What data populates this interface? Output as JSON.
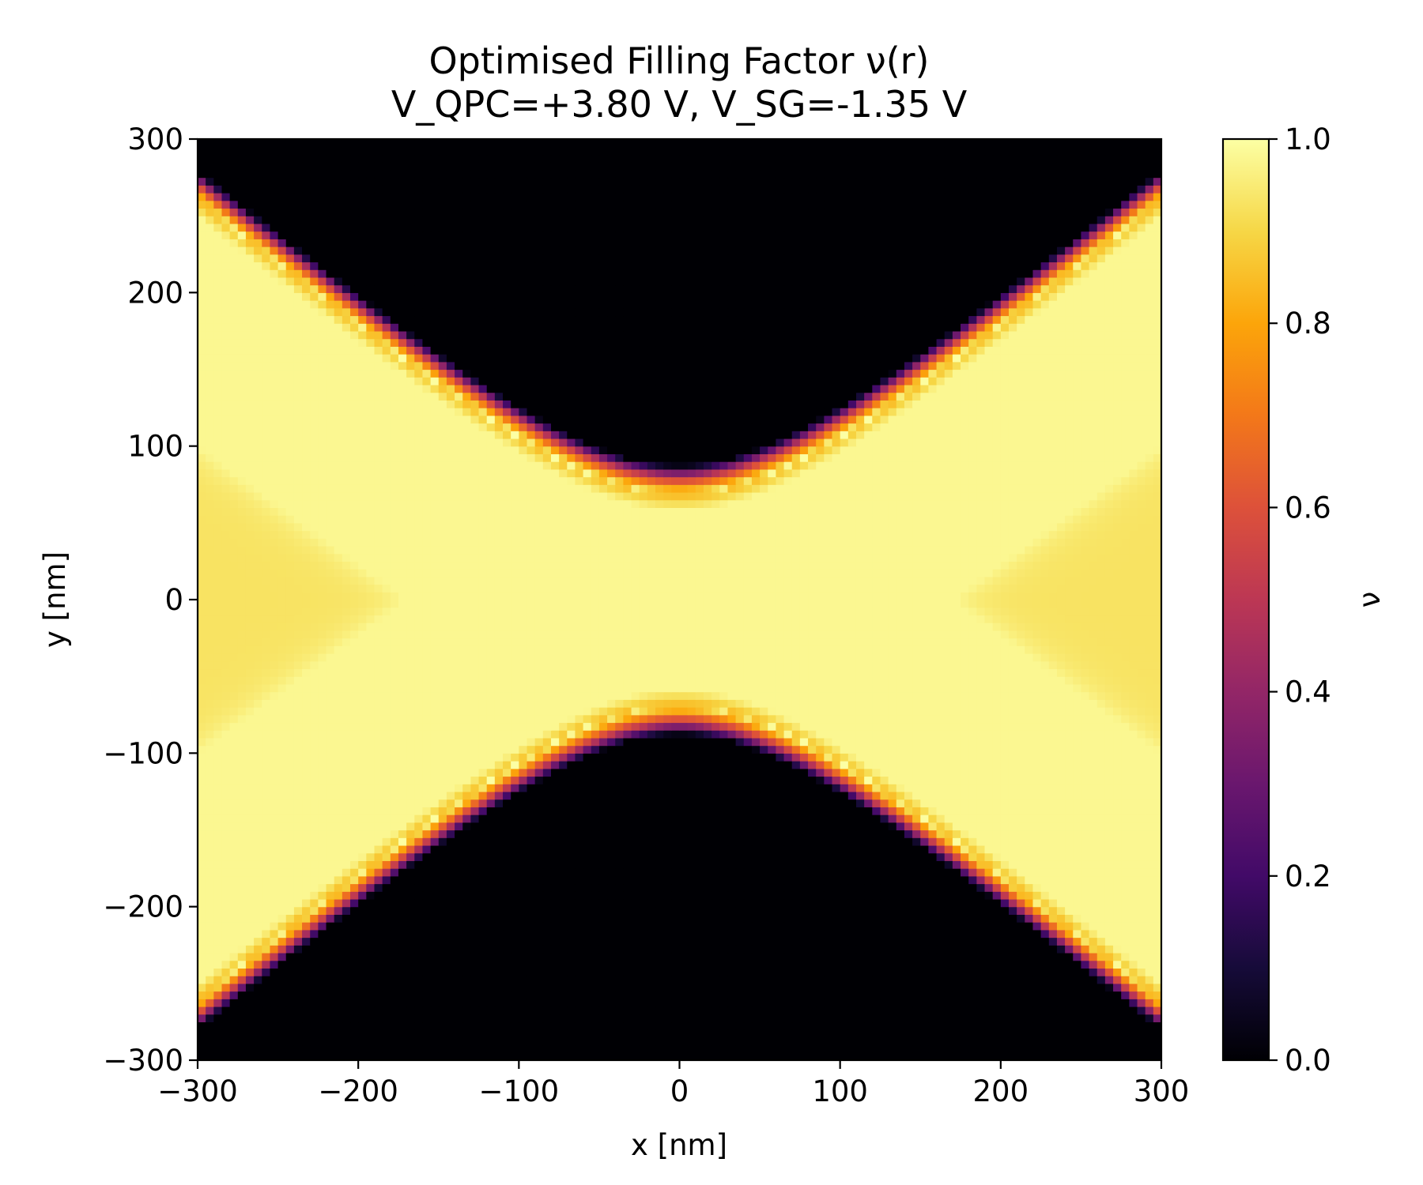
{
  "chart_data": {
    "type": "heatmap",
    "title": "Optimised Filling Factor ν(r)",
    "subtitle": "V_QPC=+3.80 V, V_SG=-1.35 V",
    "xlabel": "x [nm]",
    "ylabel": "y [nm]",
    "xlim": [
      -300,
      300
    ],
    "ylim": [
      -300,
      300
    ],
    "x_ticks": [
      -300,
      -200,
      -100,
      0,
      100,
      200,
      300
    ],
    "x_tick_labels": [
      "−300",
      "−200",
      "−100",
      "0",
      "100",
      "200",
      "300"
    ],
    "y_ticks": [
      -300,
      -200,
      -100,
      0,
      100,
      200,
      300
    ],
    "y_tick_labels": [
      "−300",
      "−200",
      "−100",
      "0",
      "100",
      "200",
      "300"
    ],
    "colormap": "inferno",
    "colorbar": {
      "label": "ν",
      "range": [
        0.0,
        1.0
      ],
      "ticks": [
        0.0,
        0.2,
        0.4,
        0.6,
        0.8,
        1.0
      ],
      "tick_labels": [
        "0.0",
        "0.2",
        "0.4",
        "0.6",
        "0.8",
        "1.0"
      ]
    },
    "grid": false,
    "depleted_regions": [
      {
        "name": "top gate region",
        "nu": 0.0,
        "apex_y": 80,
        "boundary_at_x": [
          [
            -300,
            300
          ],
          [
            -100,
            140
          ],
          [
            0,
            80
          ],
          [
            100,
            140
          ],
          [
            300,
            300
          ]
        ]
      },
      {
        "name": "bottom gate region",
        "nu": 0.0,
        "apex_y": -80,
        "boundary_at_x": [
          [
            -300,
            -300
          ],
          [
            -100,
            -140
          ],
          [
            0,
            -80
          ],
          [
            100,
            -140
          ],
          [
            300,
            -300
          ]
        ]
      }
    ],
    "channel_value": 0.98,
    "side_pocket_value": 0.93,
    "edge_value_near_gate": 0.85
  }
}
